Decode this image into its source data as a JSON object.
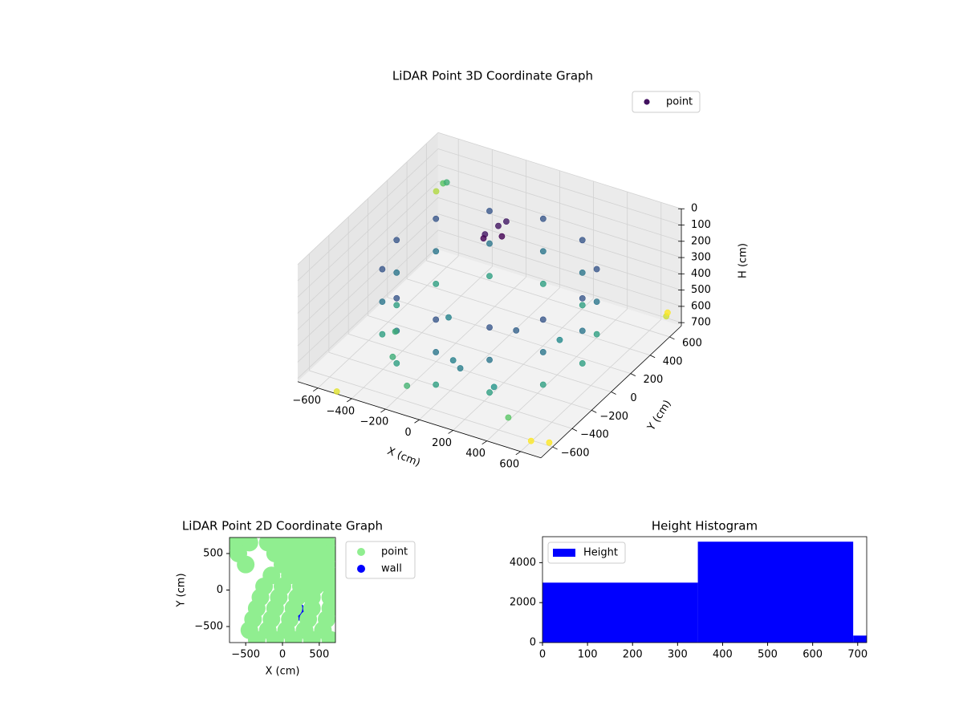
{
  "chart_data": [
    {
      "type": "scatter3d",
      "title": "LiDAR Point 3D Coordinate Graph",
      "xlabel": "X (cm)",
      "ylabel": "Y (cm)",
      "zlabel": "H (cm)",
      "xlim": [
        -720,
        720
      ],
      "ylim": [
        -720,
        720
      ],
      "zlim": [
        0,
        720
      ],
      "zinverted": true,
      "grid": true,
      "legend": "upper right",
      "xticks": [
        {
          "value": -600,
          "label": "−600"
        },
        {
          "value": -400,
          "label": "−400"
        },
        {
          "value": -200,
          "label": "−200"
        },
        0,
        200,
        400,
        600
      ],
      "yticks": [
        {
          "value": -600,
          "label": "−600"
        },
        {
          "value": -400,
          "label": "−400"
        },
        {
          "value": -200,
          "label": "−200"
        },
        0,
        200,
        400,
        600
      ],
      "zticks": [
        0,
        100,
        200,
        300,
        400,
        500,
        600,
        700
      ],
      "series": [
        {
          "name": "point",
          "colormap": "viridis",
          "x": [
            550,
            550,
            550,
            476,
            476,
            476,
            275,
            275,
            275,
            0,
            0,
            0,
            -275,
            -275,
            -275,
            -476,
            -476,
            -476,
            -550,
            -550,
            -550,
            -476,
            -476,
            -476,
            -275,
            -275,
            -275,
            0,
            0,
            0,
            275,
            275,
            275,
            476,
            476,
            476,
            -300,
            -100,
            200,
            100,
            -400,
            300,
            -200,
            400,
            -500,
            0,
            -150,
            -100,
            -200,
            -120,
            -180,
            -720,
            -650,
            -600,
            650,
            700,
            700,
            650,
            -500
          ],
          "y": [
            0,
            0,
            0,
            275,
            275,
            275,
            476,
            476,
            476,
            550,
            550,
            550,
            476,
            476,
            476,
            275,
            275,
            275,
            0,
            0,
            0,
            -275,
            -275,
            -275,
            -476,
            -476,
            -476,
            -550,
            -550,
            -550,
            -476,
            -476,
            -476,
            -275,
            -275,
            -275,
            100,
            -200,
            -300,
            100,
            -300,
            200,
            -500,
            -500,
            -100,
            -300,
            350,
            300,
            300,
            380,
            250,
            700,
            650,
            600,
            -700,
            -600,
            600,
            700,
            -700
          ],
          "z": [
            200,
            400,
            600,
            200,
            400,
            600,
            200,
            400,
            600,
            200,
            400,
            600,
            200,
            400,
            600,
            200,
            400,
            600,
            200,
            400,
            600,
            200,
            400,
            600,
            200,
            400,
            600,
            200,
            400,
            600,
            200,
            400,
            600,
            200,
            400,
            600,
            650,
            680,
            690,
            600,
            700,
            650,
            700,
            700,
            690,
            640,
            180,
            200,
            220,
            160,
            210,
            350,
            250,
            200,
            650,
            700,
            600,
            650,
            720
          ]
        }
      ]
    },
    {
      "type": "scatter",
      "title": "LiDAR Point 2D Coordinate Graph",
      "xlabel": "X (cm)",
      "ylabel": "Y (cm)",
      "xlim": [
        -720,
        720
      ],
      "ylim": [
        -720,
        720
      ],
      "legend": "outside right",
      "xticks": [
        {
          "value": -500,
          "label": "−500"
        },
        0,
        500
      ],
      "yticks": [
        {
          "value": -500,
          "label": "−500"
        },
        0,
        500
      ],
      "series": [
        {
          "name": "point",
          "color": "#90ee90",
          "x": [
            -650,
            -450,
            -200,
            0,
            200,
            400,
            600,
            -600,
            -100,
            100,
            300,
            500,
            650,
            -500,
            0,
            200,
            400,
            600,
            -150,
            100,
            300,
            500,
            650,
            -250,
            0,
            250,
            450,
            650,
            -300,
            -50,
            200,
            400,
            650,
            -350,
            -100,
            150,
            400,
            650,
            -400,
            -150,
            100,
            350,
            600,
            -450,
            -200,
            50,
            300,
            550,
            -350,
            -100,
            150,
            400,
            650
          ],
          "y": [
            650,
            650,
            650,
            650,
            650,
            650,
            650,
            500,
            500,
            500,
            500,
            500,
            500,
            350,
            350,
            350,
            350,
            350,
            200,
            200,
            200,
            200,
            200,
            50,
            50,
            50,
            50,
            50,
            -100,
            -100,
            -100,
            -100,
            -100,
            -250,
            -250,
            -250,
            -250,
            -250,
            -400,
            -400,
            -400,
            -400,
            -400,
            -550,
            -550,
            -550,
            -550,
            -550,
            -680,
            -680,
            -680,
            -680,
            -680
          ]
        },
        {
          "name": "wall",
          "color": "#0000ff",
          "x": [
            300,
            200,
            400
          ],
          "y": [
            0,
            -300,
            300
          ]
        }
      ]
    },
    {
      "type": "histogram",
      "title": "Height Histogram",
      "legend": "upper left",
      "bins": [
        0,
        345,
        690,
        720
      ],
      "xlim": [
        0,
        720
      ],
      "ylim": [
        0,
        5300
      ],
      "xticks": [
        0,
        100,
        200,
        300,
        400,
        500,
        600,
        700
      ],
      "yticks": [
        0,
        2000,
        4000
      ],
      "series": [
        {
          "name": "Height",
          "color": "#0000ff",
          "values": [
            3000,
            5050,
            350
          ]
        }
      ]
    }
  ]
}
